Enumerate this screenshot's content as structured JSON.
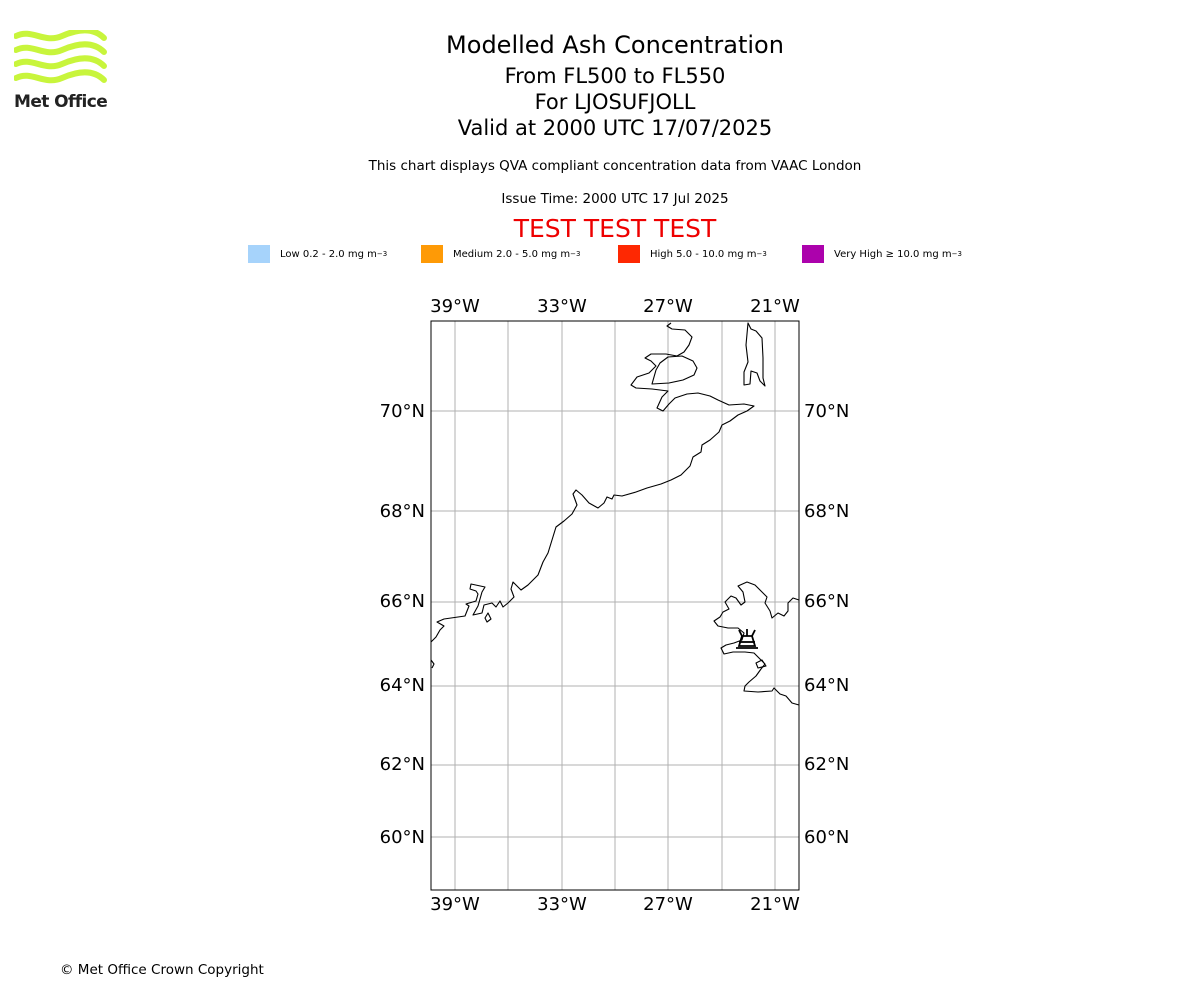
{
  "brand": {
    "name": "Met Office",
    "color": "#c8f53c"
  },
  "header": {
    "title": "Modelled Ash Concentration",
    "levels": "From FL500 to FL550",
    "location": "For LJOSUFJOLL",
    "valid": "Valid at 2000 UTC 17/07/2025",
    "description": "This chart displays QVA compliant concentration data from VAAC London",
    "issue_time": "Issue Time: 2000 UTC 17 Jul 2025",
    "test_banner": "TEST TEST TEST"
  },
  "legend": [
    {
      "label": "Low 0.2 - 2.0 mg m",
      "color": "#a6d3fb"
    },
    {
      "label": "Medium 2.0 - 5.0 mg m",
      "color": "#fe9a06"
    },
    {
      "label": "High 5.0 - 10.0 mg m",
      "color": "#fe2802"
    },
    {
      "label": "Very High ≥ 10.0 mg m",
      "color": "#ac02ac"
    }
  ],
  "legend_unit_exponent": "−3",
  "map": {
    "longitude_labels": [
      "39°W",
      "33°W",
      "27°W",
      "21°W"
    ],
    "latitude_labels": [
      "70°N",
      "68°N",
      "66°N",
      "64°N",
      "62°N",
      "60°N"
    ],
    "gridline_color": "#b0b0b0",
    "volcano_marker": "volcano-icon"
  },
  "footer": {
    "copyright": "© Met Office Crown Copyright"
  }
}
